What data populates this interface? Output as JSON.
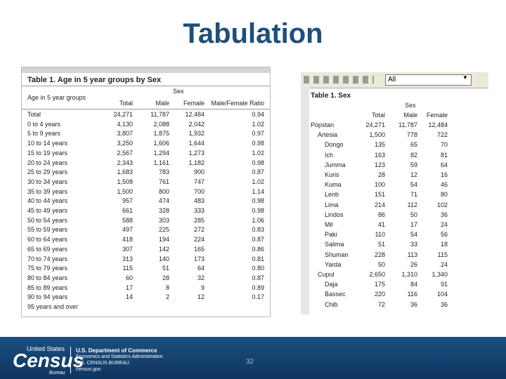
{
  "title": "Tabulation",
  "left_table": {
    "title": "Table 1. Age in 5 year groups by Sex",
    "group_header": "Sex",
    "columns": [
      "Age in 5 year groups",
      "Total",
      "Male",
      "Female",
      "Male/Female Ratio"
    ],
    "rows": [
      [
        "Total",
        "24,271",
        "11,787",
        "12,484",
        "0.94"
      ],
      [
        "0 to 4 years",
        "4,130",
        "2,088",
        "2,042",
        "1.02"
      ],
      [
        "5 to 9 years",
        "3,807",
        "1,875",
        "1,932",
        "0.97"
      ],
      [
        "10 to 14 years",
        "3,250",
        "1,606",
        "1,644",
        "0.98"
      ],
      [
        "15 to 19 years",
        "2,567",
        "1,294",
        "1,273",
        "1.02"
      ],
      [
        "20 to 24 years",
        "2,343",
        "1,161",
        "1,182",
        "0.98"
      ],
      [
        "25 to 29 years",
        "1,683",
        "783",
        "900",
        "0.87"
      ],
      [
        "30 to 34 years",
        "1,508",
        "761",
        "747",
        "1.02"
      ],
      [
        "35 to 39 years",
        "1,500",
        "800",
        "700",
        "1.14"
      ],
      [
        "40 to 44 years",
        "957",
        "474",
        "483",
        "0.98"
      ],
      [
        "45 to 49 years",
        "661",
        "328",
        "333",
        "0.98"
      ],
      [
        "50 to 54 years",
        "588",
        "303",
        "285",
        "1.06"
      ],
      [
        "55 to 59 years",
        "497",
        "225",
        "272",
        "0.83"
      ],
      [
        "60 to 64 years",
        "418",
        "194",
        "224",
        "0.87"
      ],
      [
        "65 to 69 years",
        "307",
        "142",
        "165",
        "0.86"
      ],
      [
        "70 to 74 years",
        "313",
        "140",
        "173",
        "0.81"
      ],
      [
        "75 to 79 years",
        "115",
        "51",
        "64",
        "0.80"
      ],
      [
        "80 to 84 years",
        "60",
        "28",
        "32",
        "0.87"
      ],
      [
        "85 to 89 years",
        "17",
        "8",
        "9",
        "0.89"
      ],
      [
        "90 to 94 years",
        "14",
        "2",
        "12",
        "0.17"
      ],
      [
        "95 years and over"
      ]
    ]
  },
  "right_table": {
    "dropdown": "All",
    "title": "Table 1. Sex",
    "group_header": "Sex",
    "columns": [
      "Total",
      "Male",
      "Female"
    ],
    "rows": [
      [
        "Popstan",
        "24,271",
        "11,787",
        "12,484"
      ],
      [
        "Artesia",
        "1,500",
        "778",
        "722"
      ],
      [
        "Dongo",
        "135",
        "65",
        "70"
      ],
      [
        "Ich",
        "163",
        "82",
        "81"
      ],
      [
        "Jumma",
        "123",
        "59",
        "64"
      ],
      [
        "Kuris",
        "28",
        "12",
        "16"
      ],
      [
        "Kuma",
        "100",
        "54",
        "46"
      ],
      [
        "Lenb",
        "151",
        "71",
        "80"
      ],
      [
        "Lima",
        "214",
        "112",
        "102"
      ],
      [
        "Lindos",
        "86",
        "50",
        "36"
      ],
      [
        "Mil",
        "41",
        "17",
        "24"
      ],
      [
        "Paki",
        "110",
        "54",
        "56"
      ],
      [
        "Salima",
        "51",
        "33",
        "18"
      ],
      [
        "Shuman",
        "228",
        "113",
        "115"
      ],
      [
        "Yarda",
        "50",
        "26",
        "24"
      ],
      [
        "Cupul",
        "2,650",
        "1,310",
        "1,340"
      ],
      [
        "Daja",
        "175",
        "84",
        "91"
      ],
      [
        "Bassec",
        "220",
        "116",
        "104"
      ],
      [
        "Chib",
        "72",
        "36",
        "36"
      ]
    ],
    "levels": [
      0,
      1,
      2,
      2,
      2,
      2,
      2,
      2,
      2,
      2,
      2,
      2,
      2,
      2,
      2,
      1,
      2,
      2,
      2
    ]
  },
  "footer": {
    "logo_top": "United States",
    "logo_main": "Census",
    "logo_bottom": "Bureau",
    "dept": "U.S. Department of Commerce",
    "admin": "Economics and Statistics Administration",
    "bureau": "U.S. CENSUS BUREAU",
    "site": "census.gov",
    "page": "32"
  }
}
